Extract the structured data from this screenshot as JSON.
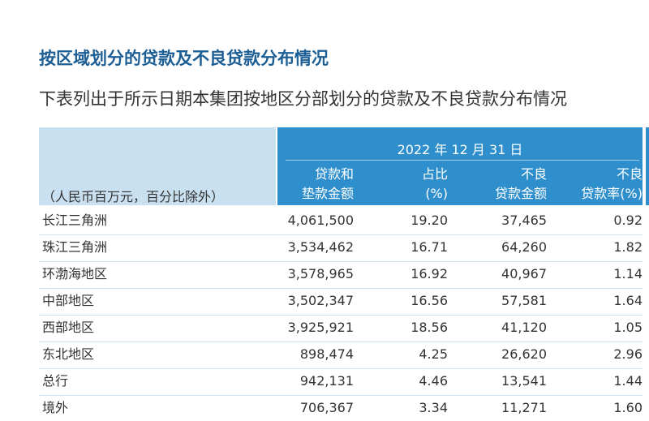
{
  "doc": {
    "title": "按区域划分的贷款及不良贷款分布情况",
    "subtitle": "下表列出于所示日期本集团按地区分部划分的贷款及不良贷款分布情况"
  },
  "table": {
    "unit_note": "（人民币百万元，百分比除外）",
    "period": "2022 年 12 月 31 日",
    "columns": [
      {
        "line1": "贷款和",
        "line2": "垫款金额"
      },
      {
        "line1": "占比",
        "line2": "(%)"
      },
      {
        "line1": "不良",
        "line2": "贷款金额"
      },
      {
        "line1": "不良",
        "line2": "贷款率(%)"
      }
    ],
    "rows": [
      {
        "region": "长江三角洲",
        "loans": "4,061,500",
        "share": "19.20",
        "npl": "37,465",
        "npl_ratio": "0.92"
      },
      {
        "region": "珠江三角洲",
        "loans": "3,534,462",
        "share": "16.71",
        "npl": "64,260",
        "npl_ratio": "1.82"
      },
      {
        "region": "环渤海地区",
        "loans": "3,578,965",
        "share": "16.92",
        "npl": "40,967",
        "npl_ratio": "1.14"
      },
      {
        "region": "中部地区",
        "loans": "3,502,347",
        "share": "16.56",
        "npl": "57,581",
        "npl_ratio": "1.64"
      },
      {
        "region": "西部地区",
        "loans": "3,925,921",
        "share": "18.56",
        "npl": "41,120",
        "npl_ratio": "1.05"
      },
      {
        "region": "东北地区",
        "loans": "898,474",
        "share": "4.25",
        "npl": "26,620",
        "npl_ratio": "2.96"
      },
      {
        "region": "总行",
        "loans": "942,131",
        "share": "4.46",
        "npl": "13,541",
        "npl_ratio": "1.44"
      },
      {
        "region": "境外",
        "loans": "706,367",
        "share": "3.34",
        "npl": "11,271",
        "npl_ratio": "1.60"
      }
    ]
  }
}
